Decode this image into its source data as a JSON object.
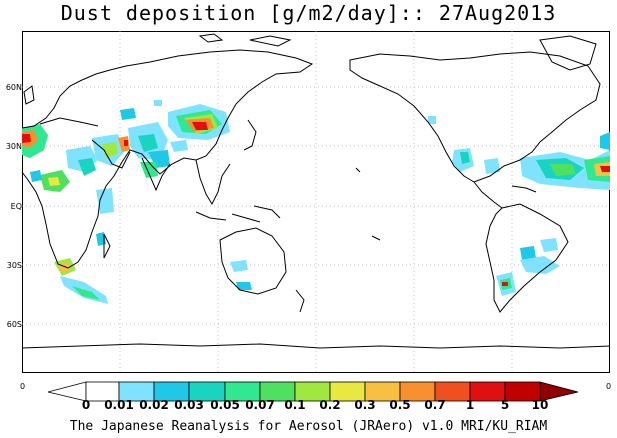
{
  "title": "Dust deposition [g/m2/day]:: 27Aug2013",
  "latitude_labels": [
    "60N",
    "30N",
    "EQ",
    "30S",
    "60S"
  ],
  "edge_labels": {
    "left": "0",
    "right": "0"
  },
  "colorbar": {
    "labels": [
      "0",
      "0.01",
      "0.02",
      "0.03",
      "0.05",
      "0.07",
      "0.1",
      "0.2",
      "0.3",
      "0.5",
      "0.7",
      "1",
      "5",
      "10"
    ],
    "colors": [
      "#ffffff",
      "#7fe3ff",
      "#20c8e8",
      "#18d4c0",
      "#30e890",
      "#50e060",
      "#a0e840",
      "#e8e840",
      "#f8c040",
      "#f89030",
      "#f05020",
      "#e01010",
      "#c00000",
      "#900000",
      "#7a0000"
    ]
  },
  "footer": "The Japanese Reanalysis for Aerosol (JRAero) v1.0 MRI/KU_RIAM"
}
